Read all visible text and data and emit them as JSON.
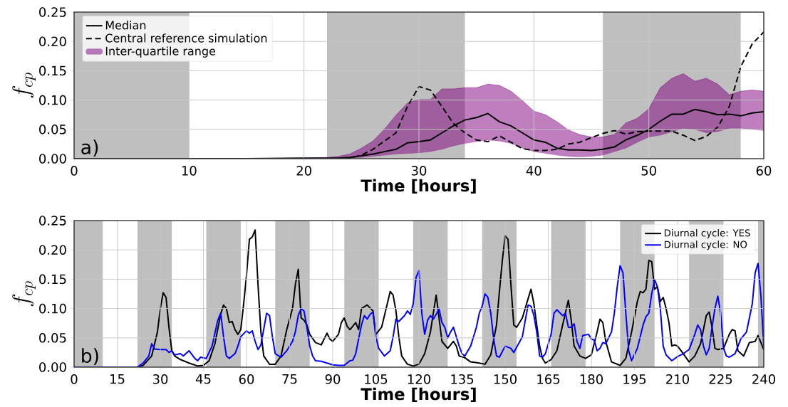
{
  "chart_data": [
    {
      "type": "line",
      "xlabel": "Time [hours]",
      "ylabel": "f_{cp}",
      "annotations": [
        "a)"
      ],
      "x": [
        0,
        5,
        10,
        15,
        20,
        22,
        23,
        24,
        25,
        26,
        27,
        28,
        29,
        30,
        31,
        32,
        33,
        34,
        35,
        36,
        37,
        38,
        39,
        40,
        41,
        42,
        43,
        44,
        45,
        46,
        47,
        48,
        49,
        50,
        51,
        52,
        53,
        54,
        55,
        56,
        57,
        58,
        59,
        60
      ],
      "xlim": [
        0,
        60
      ],
      "xticks": [
        0,
        10,
        20,
        30,
        40,
        50,
        60
      ],
      "ylim": [
        0,
        0.25
      ],
      "yticks": [
        {
          "value": 0,
          "label": "0.00"
        },
        {
          "value": 0.05,
          "label": "0.05"
        },
        {
          "value": 0.1,
          "label": "0.10"
        },
        {
          "value": 0.15,
          "label": "0.15"
        },
        {
          "value": 0.2,
          "label": "0.20"
        },
        {
          "value": 0.25,
          "label": "0.25"
        }
      ],
      "grid": true,
      "legend": "top left",
      "bands": [
        {
          "axis": "x",
          "from": 0,
          "to": 10,
          "color": "#bfbfbf"
        },
        {
          "axis": "x",
          "from": 22,
          "to": 34,
          "color": "#bfbfbf"
        },
        {
          "axis": "x",
          "from": 46,
          "to": 58,
          "color": "#bfbfbf"
        }
      ],
      "series": [
        {
          "name": "Median",
          "color": "#000000",
          "line_style": "solid",
          "values": [
            0,
            0,
            0,
            0,
            0.001,
            0.001,
            0.001,
            0.002,
            0.005,
            0.008,
            0.012,
            0.016,
            0.027,
            0.029,
            0.032,
            0.044,
            0.056,
            0.066,
            0.07,
            0.077,
            0.063,
            0.056,
            0.044,
            0.032,
            0.028,
            0.018,
            0.015,
            0.015,
            0.014,
            0.016,
            0.02,
            0.032,
            0.04,
            0.05,
            0.064,
            0.076,
            0.076,
            0.084,
            0.08,
            0.075,
            0.076,
            0.073,
            0.078,
            0.08
          ]
        },
        {
          "name": "Central reference simulation",
          "color": "#000000",
          "line_style": "dashed",
          "values": [
            0,
            0,
            0,
            0,
            0,
            0,
            0,
            0.001,
            0.006,
            0.016,
            0.03,
            0.044,
            0.089,
            0.123,
            0.117,
            0.089,
            0.06,
            0.044,
            0.032,
            0.029,
            0.039,
            0.028,
            0.017,
            0.014,
            0.014,
            0.016,
            0.025,
            0.028,
            0.036,
            0.043,
            0.048,
            0.042,
            0.046,
            0.047,
            0.047,
            0.047,
            0.04,
            0.031,
            0.038,
            0.054,
            0.089,
            0.157,
            0.196,
            0.216
          ]
        },
        {
          "name": "Inter-quartile range",
          "type": "line",
          "color": "#800080",
          "values": [
            null,
            null,
            null,
            null,
            0.001,
            0.002,
            0.004,
            0.008,
            0.018,
            0.03,
            0.05,
            0.074,
            0.095,
            0.101,
            0.101,
            0.119,
            0.119,
            0.121,
            0.121,
            0.127,
            0.125,
            0.115,
            0.099,
            0.081,
            0.075,
            0.063,
            0.049,
            0.041,
            0.037,
            0.037,
            0.041,
            0.061,
            0.069,
            0.085,
            0.121,
            0.137,
            0.145,
            0.132,
            0.137,
            0.127,
            0.109,
            0.115,
            0.117,
            0.115
          ],
          "upper": [
            0,
            0,
            0,
            0,
            0.001,
            0.002,
            0.004,
            0.008,
            0.018,
            0.03,
            0.05,
            0.074,
            0.095,
            0.101,
            0.101,
            0.119,
            0.119,
            0.121,
            0.121,
            0.127,
            0.125,
            0.115,
            0.099,
            0.081,
            0.075,
            0.063,
            0.049,
            0.041,
            0.037,
            0.037,
            0.041,
            0.061,
            0.069,
            0.085,
            0.121,
            0.137,
            0.145,
            0.132,
            0.137,
            0.127,
            0.109,
            0.115,
            0.117,
            0.115
          ],
          "lower": [
            0,
            0,
            0,
            0,
            0,
            0,
            0,
            0.001,
            0.002,
            0.004,
            0.006,
            0.008,
            0.009,
            0.01,
            0.012,
            0.016,
            0.022,
            0.026,
            0.029,
            0.032,
            0.03,
            0.026,
            0.018,
            0.012,
            0.009,
            0.006,
            0.004,
            0.003,
            0.004,
            0.006,
            0.012,
            0.018,
            0.028,
            0.037,
            0.04,
            0.046,
            0.052,
            0.05,
            0.044,
            0.046,
            0.052,
            0.052,
            0.05,
            0.048
          ]
        }
      ]
    },
    {
      "type": "line",
      "xlabel": "Time [hours]",
      "ylabel": "f_{cp}",
      "annotations": [
        "b)"
      ],
      "xlim": [
        0,
        240
      ],
      "xticks": [
        0,
        15,
        30,
        45,
        60,
        75,
        90,
        105,
        120,
        135,
        150,
        165,
        180,
        195,
        210,
        225,
        240
      ],
      "ylim": [
        0,
        0.25
      ],
      "yticks": [
        {
          "value": 0,
          "label": "0.00"
        },
        {
          "value": 0.05,
          "label": "0.05"
        },
        {
          "value": 0.1,
          "label": "0.10"
        },
        {
          "value": 0.15,
          "label": "0.15"
        },
        {
          "value": 0.2,
          "label": "0.20"
        },
        {
          "value": 0.25,
          "label": "0.25"
        }
      ],
      "grid": true,
      "legend": "top right",
      "bands": [
        {
          "axis": "x",
          "from": 0,
          "to": 10,
          "color": "#bfbfbf"
        },
        {
          "axis": "x",
          "from": 22,
          "to": 34,
          "color": "#bfbfbf"
        },
        {
          "axis": "x",
          "from": 46,
          "to": 58,
          "color": "#bfbfbf"
        },
        {
          "axis": "x",
          "from": 70,
          "to": 82,
          "color": "#bfbfbf"
        },
        {
          "axis": "x",
          "from": 94,
          "to": 106,
          "color": "#bfbfbf"
        },
        {
          "axis": "x",
          "from": 118,
          "to": 130,
          "color": "#bfbfbf"
        },
        {
          "axis": "x",
          "from": 142,
          "to": 154,
          "color": "#bfbfbf"
        },
        {
          "axis": "x",
          "from": 166,
          "to": 178,
          "color": "#bfbfbf"
        },
        {
          "axis": "x",
          "from": 190,
          "to": 202,
          "color": "#bfbfbf"
        },
        {
          "axis": "x",
          "from": 214,
          "to": 226,
          "color": "#bfbfbf"
        },
        {
          "axis": "x",
          "from": 238,
          "to": 240,
          "color": "#bfbfbf"
        }
      ],
      "series": [
        {
          "name": "Diurnal cycle: YES",
          "color": "#000000",
          "x": [
            0,
            22,
            24,
            27,
            29,
            30,
            31,
            32,
            33,
            34,
            35,
            37,
            40,
            43,
            45,
            47,
            49,
            51,
            52,
            53,
            54,
            55,
            56,
            57,
            58,
            59,
            60,
            61,
            62,
            63,
            64,
            65,
            66,
            68,
            70,
            72,
            74,
            76,
            77,
            78,
            79,
            80,
            81,
            82,
            84,
            86,
            88,
            89,
            90,
            92,
            93,
            94,
            95,
            96,
            97,
            98,
            99,
            100,
            102,
            104,
            105,
            107,
            108,
            110,
            111,
            112,
            113,
            114,
            116,
            118,
            120,
            122,
            124,
            125,
            126,
            127,
            128,
            130,
            132,
            133,
            134,
            136,
            138,
            141,
            143,
            145,
            147,
            148,
            149,
            150,
            151,
            152,
            153,
            154,
            156,
            158,
            159,
            160,
            162,
            163,
            164,
            166,
            168,
            170,
            172,
            173,
            174,
            176,
            178,
            180,
            182,
            183,
            184,
            185,
            187,
            190,
            192,
            194,
            196,
            197,
            198,
            199,
            200,
            201,
            202,
            203,
            204,
            205,
            206,
            207,
            208,
            209,
            210,
            212,
            214,
            216,
            218,
            220,
            221,
            222,
            223,
            224,
            226,
            228,
            229,
            230,
            231,
            233,
            235,
            237,
            238,
            239,
            240
          ],
          "values": [
            0,
            0,
            0.003,
            0.019,
            0.06,
            0.1,
            0.127,
            0.119,
            0.068,
            0.028,
            0.019,
            0.013,
            0.007,
            0.002,
            0.003,
            0.011,
            0.04,
            0.09,
            0.106,
            0.1,
            0.076,
            0.078,
            0.064,
            0.056,
            0.064,
            0.108,
            0.157,
            0.218,
            0.222,
            0.234,
            0.141,
            0.06,
            0.019,
            0.005,
            0.005,
            0.019,
            0.064,
            0.1,
            0.141,
            0.167,
            0.084,
            0.08,
            0.072,
            0.056,
            0.042,
            0.038,
            0.058,
            0.048,
            0.044,
            0.056,
            0.076,
            0.084,
            0.07,
            0.064,
            0.07,
            0.076,
            0.064,
            0.1,
            0.106,
            0.096,
            0.056,
            0.068,
            0.088,
            0.129,
            0.123,
            0.096,
            0.052,
            0.019,
            0.005,
            0.002,
            0.005,
            0.023,
            0.06,
            0.092,
            0.123,
            0.084,
            0.044,
            0.032,
            0.044,
            0.036,
            0.019,
            0.016,
            0.009,
            0.007,
            0.005,
            0.021,
            0.072,
            0.129,
            0.181,
            0.224,
            0.218,
            0.141,
            0.072,
            0.068,
            0.084,
            0.117,
            0.133,
            0.108,
            0.036,
            0.015,
            0.007,
            0.013,
            0.028,
            0.072,
            0.114,
            0.08,
            0.036,
            0.019,
            0.015,
            0.021,
            0.06,
            0.082,
            0.076,
            0.044,
            0.009,
            0.003,
            0.015,
            0.06,
            0.112,
            0.129,
            0.127,
            0.133,
            0.182,
            0.18,
            0.133,
            0.137,
            0.112,
            0.119,
            0.1,
            0.076,
            0.036,
            0.038,
            0.036,
            0.023,
            0.009,
            0.019,
            0.04,
            0.088,
            0.094,
            0.068,
            0.032,
            0.03,
            0.032,
            0.056,
            0.064,
            0.062,
            0.028,
            0.019,
            0.042,
            0.044,
            0.054,
            0.042,
            0.03
          ]
        },
        {
          "name": "Diurnal cycle: NO",
          "color": "#0000ff",
          "x": [
            0,
            22,
            24,
            26,
            27,
            28,
            30,
            32,
            33,
            34,
            35,
            37,
            38,
            40,
            42,
            43,
            44,
            46,
            48,
            50,
            51,
            52,
            53,
            54,
            56,
            57,
            58,
            60,
            61,
            62,
            63,
            64,
            65,
            67,
            68,
            69,
            70,
            72,
            74,
            76,
            77,
            78,
            79,
            80,
            81,
            82,
            83,
            84,
            86,
            88,
            90,
            92,
            94,
            96,
            97,
            98,
            99,
            100,
            101,
            102,
            103,
            104,
            105,
            106,
            108,
            110,
            111,
            112,
            113,
            115,
            116,
            117,
            118,
            119,
            120,
            121,
            122,
            123,
            124,
            125,
            126,
            127,
            128,
            129,
            130,
            131,
            132,
            133,
            134,
            135,
            136,
            138,
            140,
            141,
            142,
            143,
            144,
            145,
            146,
            147,
            148,
            150,
            152,
            153,
            154,
            156,
            157,
            158,
            159,
            160,
            161,
            162,
            163,
            164,
            166,
            167,
            168,
            170,
            171,
            172,
            173,
            174,
            175,
            176,
            177,
            179,
            180,
            181,
            182,
            183,
            184,
            185,
            187,
            188,
            189,
            190,
            191,
            192,
            193,
            194,
            196,
            198,
            199,
            200,
            201,
            202,
            203,
            204,
            205,
            206,
            208,
            210,
            212,
            214,
            216,
            217,
            218,
            219,
            220,
            221,
            222,
            223,
            224,
            225,
            226,
            227,
            228,
            230,
            232,
            234,
            236,
            237,
            238,
            239,
            240
          ],
          "values": [
            0,
            0,
            0.007,
            0.019,
            0.04,
            0.031,
            0.03,
            0.03,
            0.025,
            0.028,
            0.021,
            0.023,
            0.019,
            0.028,
            0.015,
            0.011,
            0.017,
            0.015,
            0.036,
            0.08,
            0.092,
            0.052,
            0.019,
            0.015,
            0.023,
            0.036,
            0.052,
            0.062,
            0.058,
            0.062,
            0.044,
            0.03,
            0.038,
            0.092,
            0.088,
            0.052,
            0.023,
            0.017,
            0.028,
            0.044,
            0.06,
            0.088,
            0.1,
            0.096,
            0.068,
            0.036,
            0.019,
            0.011,
            0.01,
            0.007,
            0.004,
            0.003,
            0.003,
            0.011,
            0.012,
            0.023,
            0.048,
            0.072,
            0.088,
            0.082,
            0.09,
            0.094,
            0.052,
            0.032,
            0.019,
            0.028,
            0.052,
            0.082,
            0.078,
            0.088,
            0.096,
            0.09,
            0.108,
            0.153,
            0.165,
            0.092,
            0.056,
            0.08,
            0.088,
            0.082,
            0.09,
            0.1,
            0.076,
            0.068,
            0.05,
            0.06,
            0.068,
            0.052,
            0.036,
            0.023,
            0.019,
            0.036,
            0.068,
            0.092,
            0.104,
            0.125,
            0.119,
            0.092,
            0.048,
            0.019,
            0.017,
            0.036,
            0.032,
            0.025,
            0.034,
            0.052,
            0.08,
            0.106,
            0.104,
            0.088,
            0.06,
            0.019,
            0.017,
            0.023,
            0.056,
            0.092,
            0.098,
            0.088,
            0.092,
            0.068,
            0.068,
            0.074,
            0.044,
            0.032,
            0.054,
            0.056,
            0.048,
            0.046,
            0.028,
            0.032,
            0.042,
            0.04,
            0.06,
            0.092,
            0.137,
            0.173,
            0.161,
            0.092,
            0.028,
            0.011,
            0.032,
            0.072,
            0.086,
            0.092,
            0.125,
            0.149,
            0.137,
            0.1,
            0.036,
            0.021,
            0.011,
            0.018,
            0.023,
            0.03,
            0.056,
            0.072,
            0.064,
            0.036,
            0.021,
            0.032,
            0.068,
            0.1,
            0.121,
            0.092,
            0.032,
            0.019,
            0.017,
            0.023,
            0.048,
            0.06,
            0.108,
            0.161,
            0.177,
            0.121,
            0.036
          ]
        }
      ]
    }
  ]
}
